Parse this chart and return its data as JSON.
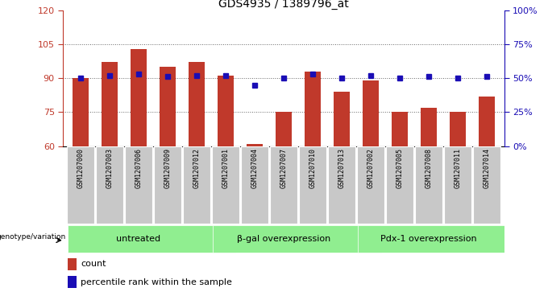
{
  "title": "GDS4935 / 1389796_at",
  "samples": [
    "GSM1207000",
    "GSM1207003",
    "GSM1207006",
    "GSM1207009",
    "GSM1207012",
    "GSM1207001",
    "GSM1207004",
    "GSM1207007",
    "GSM1207010",
    "GSM1207013",
    "GSM1207002",
    "GSM1207005",
    "GSM1207008",
    "GSM1207011",
    "GSM1207014"
  ],
  "counts": [
    90,
    97,
    103,
    95,
    97,
    91,
    61,
    75,
    93,
    84,
    89,
    75,
    77,
    75,
    82
  ],
  "percentiles": [
    50,
    52,
    53,
    51,
    52,
    52,
    45,
    50,
    53,
    50,
    52,
    50,
    51,
    50,
    51
  ],
  "ylim_left": [
    60,
    120
  ],
  "ylim_right": [
    0,
    100
  ],
  "groups": [
    {
      "label": "untreated",
      "start": 0,
      "end": 5
    },
    {
      "label": "β-gal overexpression",
      "start": 5,
      "end": 10
    },
    {
      "label": "Pdx-1 overexpression",
      "start": 10,
      "end": 15
    }
  ],
  "bar_color": "#c0392b",
  "dot_color": "#1a0db5",
  "bar_bottom": 60,
  "group_bg_color": "#90ee90",
  "tick_color_left": "#c0392b",
  "tick_color_right": "#1a0db5",
  "xlabel_area_color": "#c8c8c8",
  "genotype_label": "genotype/variation"
}
